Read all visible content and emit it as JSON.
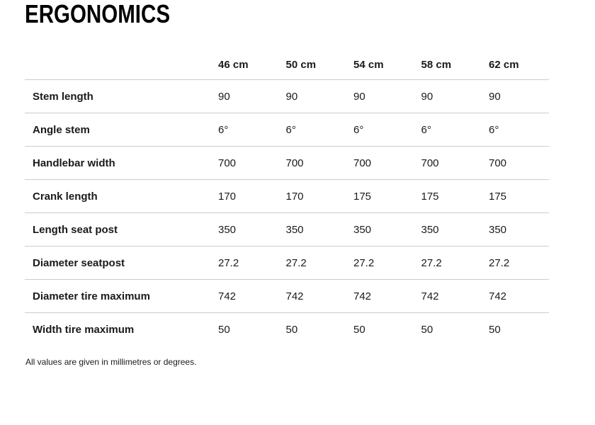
{
  "page": {
    "title": "ERGONOMICS",
    "footnote": "All values are given in millimetres or degrees."
  },
  "table": {
    "size_headers": [
      "46 cm",
      "50 cm",
      "54 cm",
      "58 cm",
      "62 cm"
    ],
    "rows": [
      {
        "label": "Stem length",
        "values": [
          "90",
          "90",
          "90",
          "90",
          "90"
        ]
      },
      {
        "label": "Angle stem",
        "values": [
          "6°",
          "6°",
          "6°",
          "6°",
          "6°"
        ]
      },
      {
        "label": "Handlebar width",
        "values": [
          "700",
          "700",
          "700",
          "700",
          "700"
        ]
      },
      {
        "label": "Crank length",
        "values": [
          "170",
          "170",
          "175",
          "175",
          "175"
        ]
      },
      {
        "label": "Length seat post",
        "values": [
          "350",
          "350",
          "350",
          "350",
          "350"
        ]
      },
      {
        "label": "Diameter seatpost",
        "values": [
          "27.2",
          "27.2",
          "27.2",
          "27.2",
          "27.2"
        ]
      },
      {
        "label": "Diameter tire maximum",
        "values": [
          "742",
          "742",
          "742",
          "742",
          "742"
        ]
      },
      {
        "label": "Width tire maximum",
        "values": [
          "50",
          "50",
          "50",
          "50",
          "50"
        ]
      }
    ]
  },
  "colors": {
    "background": "#ffffff",
    "title_text": "#000000",
    "body_text": "#1a1a1a",
    "divider": "#cccccc"
  }
}
